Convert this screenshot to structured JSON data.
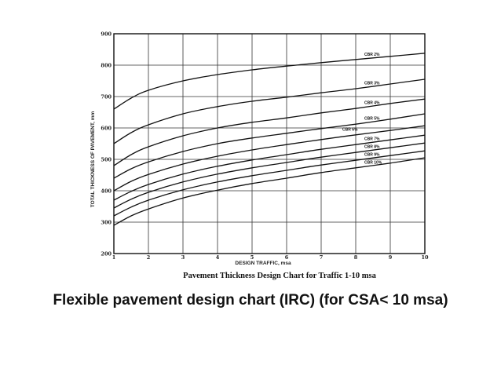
{
  "slide": {
    "title": "Flexible pavement design chart  (IRC) (for CSA< 10 msa)"
  },
  "chart_data": {
    "type": "line",
    "title": "Pavement Thickness Design Chart for Traffic 1-10 msa",
    "xlabel": "DESIGN TRAFFIC, msa",
    "ylabel": "TOTAL THICKNESS OF PAVEMENT, mm",
    "xlim": [
      1,
      10
    ],
    "ylim": [
      200,
      900
    ],
    "xticks": [
      1,
      2,
      3,
      4,
      5,
      6,
      7,
      8,
      9,
      10
    ],
    "yticks": [
      200,
      300,
      400,
      500,
      600,
      700,
      800,
      900
    ],
    "grid": true,
    "x": [
      1,
      1.5,
      2,
      3,
      4,
      5,
      6,
      7,
      8,
      9,
      10
    ],
    "series": [
      {
        "name": "CBR 2%",
        "values": [
          660,
          695,
          720,
          750,
          770,
          785,
          797,
          808,
          818,
          828,
          838
        ]
      },
      {
        "name": "CBR 3%",
        "values": [
          550,
          585,
          610,
          645,
          668,
          685,
          698,
          712,
          725,
          740,
          755
        ]
      },
      {
        "name": "CBR 4%",
        "values": [
          480,
          515,
          540,
          575,
          600,
          618,
          632,
          648,
          662,
          678,
          692
        ]
      },
      {
        "name": "CBR 5%",
        "values": [
          440,
          470,
          492,
          525,
          550,
          568,
          583,
          598,
          612,
          628,
          645
        ]
      },
      {
        "name": "CBR 6%",
        "values": [
          400,
          430,
          452,
          485,
          510,
          530,
          547,
          563,
          578,
          592,
          607
        ]
      },
      {
        "name": "CBR 7%",
        "values": [
          370,
          398,
          420,
          453,
          478,
          498,
          515,
          532,
          547,
          562,
          577
        ]
      },
      {
        "name": "CBR 8%",
        "values": [
          345,
          373,
          395,
          428,
          453,
          473,
          490,
          507,
          522,
          537,
          552
        ]
      },
      {
        "name": "CBR 9%",
        "values": [
          320,
          348,
          370,
          403,
          428,
          448,
          465,
          482,
          497,
          512,
          527
        ]
      },
      {
        "name": "CBR 10%",
        "values": [
          290,
          320,
          342,
          377,
          402,
          423,
          440,
          458,
          473,
          488,
          505
        ]
      }
    ]
  }
}
